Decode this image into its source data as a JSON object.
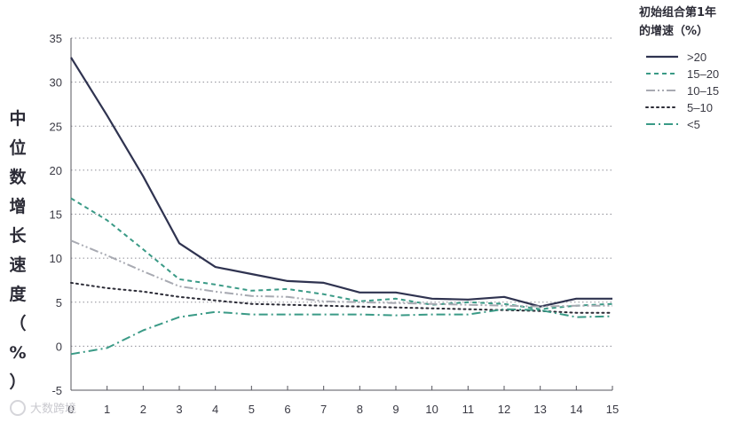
{
  "watermark": "大数跨境",
  "chart_data": {
    "type": "line",
    "ylabel": "中位数增长速度（%）",
    "xlabel": "",
    "x": [
      0,
      1,
      2,
      3,
      4,
      5,
      6,
      7,
      8,
      9,
      10,
      11,
      12,
      13,
      14,
      15
    ],
    "xticks": [
      "0",
      "1",
      "2",
      "3",
      "4",
      "5",
      "6",
      "7",
      "8",
      "9",
      "10",
      "11",
      "12",
      "13",
      "14",
      "15"
    ],
    "yticks": [
      35,
      30,
      25,
      20,
      15,
      10,
      5,
      0,
      -5
    ],
    "ylim": [
      -5,
      35
    ],
    "xlim": [
      0,
      15
    ],
    "grid": "horizontal dotted",
    "legend": {
      "title_line1": "初始组合第1年",
      "title_line2": "的增速（%）",
      "placement": "top-right"
    },
    "series": [
      {
        "name": ">20",
        "color": "#2f3350",
        "style": "solid",
        "values": [
          32.8,
          26.2,
          19.3,
          11.7,
          9.0,
          8.2,
          7.4,
          7.2,
          6.1,
          6.1,
          5.4,
          5.3,
          5.6,
          4.5,
          5.4,
          5.4
        ]
      },
      {
        "name": "15–20",
        "color": "#3a9a86",
        "style": "dash",
        "values": [
          16.8,
          14.3,
          11.0,
          7.6,
          7.0,
          6.3,
          6.5,
          5.9,
          5.1,
          5.4,
          4.7,
          5.0,
          4.8,
          4.2,
          4.6,
          4.8
        ]
      },
      {
        "name": "10–15",
        "color": "#a8aab2",
        "style": "dashdotdot",
        "values": [
          12.0,
          10.3,
          8.5,
          6.8,
          6.2,
          5.7,
          5.6,
          5.1,
          5.0,
          4.9,
          4.8,
          4.7,
          4.6,
          4.5,
          4.6,
          4.6
        ]
      },
      {
        "name": "5–10",
        "color": "#2b2b36",
        "style": "dot",
        "values": [
          7.2,
          6.6,
          6.2,
          5.6,
          5.2,
          4.8,
          4.7,
          4.6,
          4.5,
          4.4,
          4.3,
          4.2,
          4.1,
          4.0,
          3.8,
          3.8
        ]
      },
      {
        "name": "<5",
        "color": "#3a9a86",
        "style": "dashdot",
        "values": [
          -0.9,
          -0.2,
          1.8,
          3.3,
          3.9,
          3.6,
          3.6,
          3.6,
          3.6,
          3.5,
          3.6,
          3.6,
          4.2,
          4.1,
          3.3,
          3.4
        ]
      }
    ]
  }
}
